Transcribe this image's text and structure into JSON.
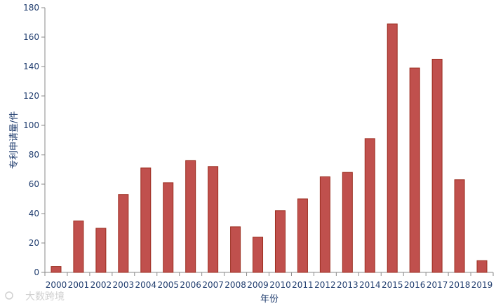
{
  "chart_data": {
    "type": "bar",
    "title": "",
    "xlabel": "年份",
    "ylabel": "专利申请量/件",
    "categories": [
      "2000",
      "2001",
      "2002",
      "2003",
      "2004",
      "2005",
      "2006",
      "2007",
      "2008",
      "2009",
      "2010",
      "2011",
      "2012",
      "2013",
      "2014",
      "2015",
      "2016",
      "2017",
      "2018",
      "2019"
    ],
    "values": [
      4,
      35,
      30,
      53,
      71,
      61,
      76,
      72,
      31,
      24,
      42,
      50,
      65,
      68,
      91,
      169,
      139,
      145,
      63,
      8
    ],
    "ylim": [
      0,
      180
    ],
    "yticks": [
      0,
      20,
      40,
      60,
      80,
      100,
      120,
      140,
      160,
      180
    ],
    "grid": false,
    "legend": "none",
    "colors": {
      "bar_fill": "#c0504d",
      "bar_stroke": "#9b2d1f",
      "axis": "#8a8a8a",
      "text": "#1f3c6e"
    }
  },
  "watermark": {
    "text": "大数跨境"
  }
}
